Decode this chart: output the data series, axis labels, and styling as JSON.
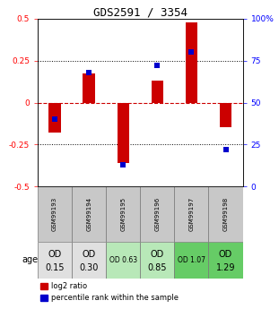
{
  "title": "GDS2591 / 3354",
  "samples": [
    "GSM99193",
    "GSM99194",
    "GSM99195",
    "GSM99196",
    "GSM99197",
    "GSM99198"
  ],
  "log2_ratios": [
    -0.18,
    0.175,
    -0.36,
    0.13,
    0.475,
    -0.145
  ],
  "percentile_ranks": [
    40,
    68,
    13,
    72,
    80,
    22
  ],
  "age_labels_line1": [
    "OD",
    "OD",
    "OD 0.63",
    "OD",
    "OD 1.07",
    "OD"
  ],
  "age_labels_line2": [
    "0.15",
    "0.30",
    "",
    "0.85",
    "",
    "1.29"
  ],
  "age_fontsize_large": [
    true,
    true,
    false,
    true,
    false,
    true
  ],
  "cell_colors": [
    "#e0e0e0",
    "#e0e0e0",
    "#b8e8b8",
    "#b8e8b8",
    "#66cc66",
    "#66cc66"
  ],
  "gsm_cell_color": "#c8c8c8",
  "ylim": [
    -0.5,
    0.5
  ],
  "bar_color_red": "#cc0000",
  "bar_color_blue": "#0000cc",
  "zero_line_color": "#cc0000",
  "legend_red": "log2 ratio",
  "legend_blue": "percentile rank within the sample",
  "bar_width": 0.35
}
